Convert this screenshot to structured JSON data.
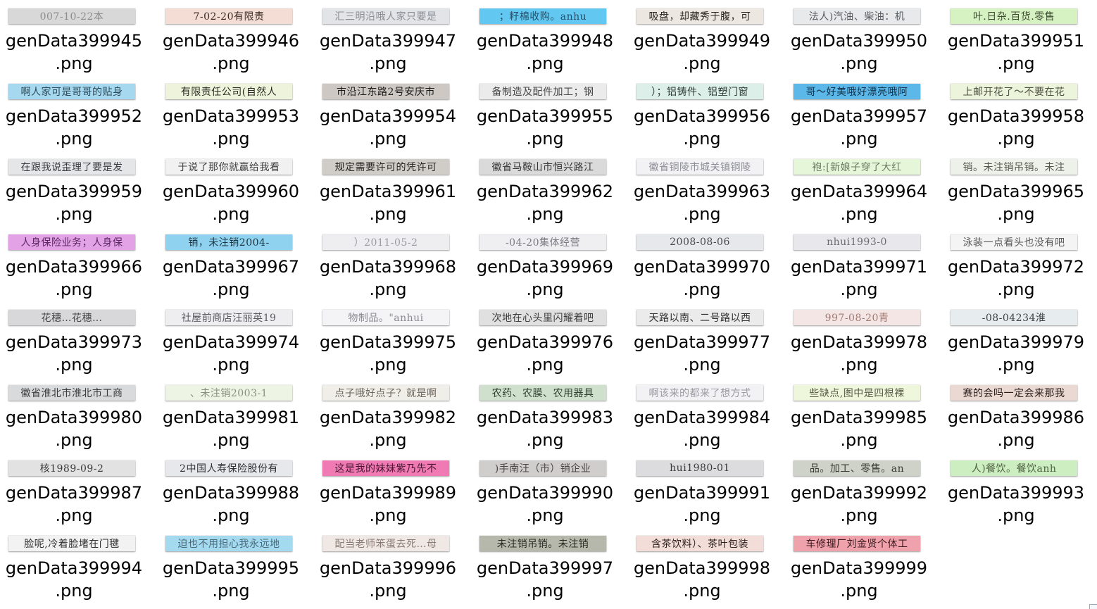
{
  "files": [
    {
      "name_line1": "genData399945",
      "ext": ".png",
      "thumb_text": "007-10-22本",
      "thumb_bg": "#d8d8d8",
      "thumb_fg": "#8c8c8c"
    },
    {
      "name_line1": "genData399946",
      "ext": ".png",
      "thumb_text": "7-02-20有限责",
      "thumb_bg": "#f4ddd4",
      "thumb_fg": "#3a2a22"
    },
    {
      "name_line1": "genData399947",
      "ext": ".png",
      "thumb_text": "汇三明沿哦人家只要是",
      "thumb_bg": "#e2e4e7",
      "thumb_fg": "#8a8f96"
    },
    {
      "name_line1": "genData399948",
      "ext": ".png",
      "thumb_text": "；籽棉收购。anhu",
      "thumb_bg": "#62c8f2",
      "thumb_fg": "#23506a"
    },
    {
      "name_line1": "genData399949",
      "ext": ".png",
      "thumb_text": "吸盘，却藏秀于腹，可",
      "thumb_bg": "#ece7e1",
      "thumb_fg": "#2a2420"
    },
    {
      "name_line1": "genData399950",
      "ext": ".png",
      "thumb_text": "法人)汽油、柴油：机",
      "thumb_bg": "#e8e9eb",
      "thumb_fg": "#555a60"
    },
    {
      "name_line1": "genData399951",
      "ext": ".png",
      "thumb_text": "叶.日杂.百货.零售",
      "thumb_bg": "#d6f2c2",
      "thumb_fg": "#3c4a30"
    },
    {
      "name_line1": "genData399952",
      "ext": ".png",
      "thumb_text": "啊人家可是哥哥的贴身",
      "thumb_bg": "#a6d9ef",
      "thumb_fg": "#2c4a5a"
    },
    {
      "name_line1": "genData399953",
      "ext": ".png",
      "thumb_text": "有限责任公司(自然人",
      "thumb_bg": "#eef4dc",
      "thumb_fg": "#2a2a22"
    },
    {
      "name_line1": "genData399954",
      "ext": ".png",
      "thumb_text": "市沿江东路2号安庆市",
      "thumb_bg": "#cdc8c4",
      "thumb_fg": "#1c1a18"
    },
    {
      "name_line1": "genData399955",
      "ext": ".png",
      "thumb_text": "备制造及配件加工；钢",
      "thumb_bg": "#ebebec",
      "thumb_fg": "#4a4a4a"
    },
    {
      "name_line1": "genData399956",
      "ext": ".png",
      "thumb_text": "）；铝铸件、铝塑门窗",
      "thumb_bg": "#dcefe8",
      "thumb_fg": "#2e3a36"
    },
    {
      "name_line1": "genData399957",
      "ext": ".png",
      "thumb_text": "哥～好美哦好漂亮哦阿",
      "thumb_bg": "#5cb8e8",
      "thumb_fg": "#10324a"
    },
    {
      "name_line1": "genData399958",
      "ext": ".png",
      "thumb_text": "上邮开花了～不要在花",
      "thumb_bg": "#edf4dc",
      "thumb_fg": "#4a5040"
    },
    {
      "name_line1": "genData399959",
      "ext": ".png",
      "thumb_text": "在跟我说歪理了要是发",
      "thumb_bg": "#e5e6e8",
      "thumb_fg": "#3a3c40"
    },
    {
      "name_line1": "genData399960",
      "ext": ".png",
      "thumb_text": "于说了那你就赢给我看",
      "thumb_bg": "#f1f1f1",
      "thumb_fg": "#3e3e3e"
    },
    {
      "name_line1": "genData399961",
      "ext": ".png",
      "thumb_text": "规定需要许可的凭许可",
      "thumb_bg": "#d0ccc8",
      "thumb_fg": "#2a2522"
    },
    {
      "name_line1": "genData399962",
      "ext": ".png",
      "thumb_text": "徽省马鞍山市恒兴路江",
      "thumb_bg": "#dadada",
      "thumb_fg": "#333333"
    },
    {
      "name_line1": "genData399963",
      "ext": ".png",
      "thumb_text": "徽省铜陵市城关镇铜陵",
      "thumb_bg": "#f2f2f4",
      "thumb_fg": "#8c8c96"
    },
    {
      "name_line1": "genData399964",
      "ext": ".png",
      "thumb_text": "袍:[新娘子穿了大红",
      "thumb_bg": "#e6f6d8",
      "thumb_fg": "#6a7a62"
    },
    {
      "name_line1": "genData399965",
      "ext": ".png",
      "thumb_text": "销。未注销吊销。未注",
      "thumb_bg": "#eef0ea",
      "thumb_fg": "#55594e"
    },
    {
      "name_line1": "genData399966",
      "ext": ".png",
      "thumb_text": "人身保险业务；人身保",
      "thumb_bg": "#e4a2e6",
      "thumb_fg": "#5a2860"
    },
    {
      "name_line1": "genData399967",
      "ext": ".png",
      "thumb_text": "销，未注销2004-",
      "thumb_bg": "#8ed2ef",
      "thumb_fg": "#1e3440"
    },
    {
      "name_line1": "genData399968",
      "ext": ".png",
      "thumb_text": "）2011-05-2",
      "thumb_bg": "#eeeef0",
      "thumb_fg": "#9a9aa2"
    },
    {
      "name_line1": "genData399969",
      "ext": ".png",
      "thumb_text": "-04-20集体经营",
      "thumb_bg": "#efeff1",
      "thumb_fg": "#7a7a82"
    },
    {
      "name_line1": "genData399970",
      "ext": ".png",
      "thumb_text": "2008-08-06",
      "thumb_bg": "#e6e8ec",
      "thumb_fg": "#45484e"
    },
    {
      "name_line1": "genData399971",
      "ext": ".png",
      "thumb_text": "nhui1993-0",
      "thumb_bg": "#e8e8ec",
      "thumb_fg": "#6a6a72"
    },
    {
      "name_line1": "genData399972",
      "ext": ".png",
      "thumb_text": "泳装一点看头也没有吧",
      "thumb_bg": "#f4f4f4",
      "thumb_fg": "#5a5a5a"
    },
    {
      "name_line1": "genData399973",
      "ext": ".png",
      "thumb_text": "花穗…花穗…",
      "thumb_bg": "#d8d8da",
      "thumb_fg": "#454548"
    },
    {
      "name_line1": "genData399974",
      "ext": ".png",
      "thumb_text": "社屋前商店汪丽英19",
      "thumb_bg": "#eeeef0",
      "thumb_fg": "#5a5a60"
    },
    {
      "name_line1": "genData399975",
      "ext": ".png",
      "thumb_text": "物制品。\"anhui",
      "thumb_bg": "#f4f4f6",
      "thumb_fg": "#8a8a90"
    },
    {
      "name_line1": "genData399976",
      "ext": ".png",
      "thumb_text": "次地在心头里闪耀着吧",
      "thumb_bg": "#e0e0e0",
      "thumb_fg": "#3c3c3c"
    },
    {
      "name_line1": "genData399977",
      "ext": ".png",
      "thumb_text": "天路以南、二号路以西",
      "thumb_bg": "#ebebeb",
      "thumb_fg": "#303030"
    },
    {
      "name_line1": "genData399978",
      "ext": ".png",
      "thumb_text": "997-08-20青",
      "thumb_bg": "#f4e6e4",
      "thumb_fg": "#a07a72"
    },
    {
      "name_line1": "genData399979",
      "ext": ".png",
      "thumb_text": "-08-04234淮",
      "thumb_bg": "#e7ecee",
      "thumb_fg": "#3c4348"
    },
    {
      "name_line1": "genData399980",
      "ext": ".png",
      "thumb_text": "徽省淮北市淮北市工商",
      "thumb_bg": "#d9dadb",
      "thumb_fg": "#3a3a3c"
    },
    {
      "name_line1": "genData399981",
      "ext": ".png",
      "thumb_text": "、未注销2003-1",
      "thumb_bg": "#eef4e4",
      "thumb_fg": "#8a9080"
    },
    {
      "name_line1": "genData399982",
      "ext": ".png",
      "thumb_text": "点子哦好点子？就是啊",
      "thumb_bg": "#f0eee8",
      "thumb_fg": "#6a645a"
    },
    {
      "name_line1": "genData399983",
      "ext": ".png",
      "thumb_text": "农药、农膜、农用器具",
      "thumb_bg": "#cfe0cc",
      "thumb_fg": "#2e4030"
    },
    {
      "name_line1": "genData399984",
      "ext": ".png",
      "thumb_text": "啊该来的都来了想方式",
      "thumb_bg": "#f2f2f4",
      "thumb_fg": "#9a9aa0"
    },
    {
      "name_line1": "genData399985",
      "ext": ".png",
      "thumb_text": "些缺点,图中是四根裸",
      "thumb_bg": "#eef6dc",
      "thumb_fg": "#5a6048"
    },
    {
      "name_line1": "genData399986",
      "ext": ".png",
      "thumb_text": "赛的会吗一定会来那我",
      "thumb_bg": "#ead8d2",
      "thumb_fg": "#2a1e1a"
    },
    {
      "name_line1": "genData399987",
      "ext": ".png",
      "thumb_text": "核1989-09-2",
      "thumb_bg": "#e2e2e2",
      "thumb_fg": "#3a3a3a"
    },
    {
      "name_line1": "genData399988",
      "ext": ".png",
      "thumb_text": "2中国人寿保险股份有",
      "thumb_bg": "#e6e8ec",
      "thumb_fg": "#303236"
    },
    {
      "name_line1": "genData399989",
      "ext": ".png",
      "thumb_text": "这是我的妹妹紫乃先不",
      "thumb_bg": "#f07ab4",
      "thumb_fg": "#4a1430"
    },
    {
      "name_line1": "genData399990",
      "ext": ".png",
      "thumb_text": ")手南汪（市）销企业",
      "thumb_bg": "#d0cecc",
      "thumb_fg": "#4a4642"
    },
    {
      "name_line1": "genData399991",
      "ext": ".png",
      "thumb_text": "hui1980-01",
      "thumb_bg": "#dcdcde",
      "thumb_fg": "#3a3a3c"
    },
    {
      "name_line1": "genData399992",
      "ext": ".png",
      "thumb_text": "品。加工、零售。an",
      "thumb_bg": "#cfd2c8",
      "thumb_fg": "#3a3c34"
    },
    {
      "name_line1": "genData399993",
      "ext": ".png",
      "thumb_text": "人)餐饮。餐饮anh",
      "thumb_bg": "#cdeec0",
      "thumb_fg": "#4e6042"
    },
    {
      "name_line1": "genData399994",
      "ext": ".png",
      "thumb_text": "脸呢,冷着脸堵在门毽",
      "thumb_bg": "#f2f2f2",
      "thumb_fg": "#2e2e2e"
    },
    {
      "name_line1": "genData399995",
      "ext": ".png",
      "thumb_text": "迫也不用担心我永远地",
      "thumb_bg": "#a4daef",
      "thumb_fg": "#4a6a7a"
    },
    {
      "name_line1": "genData399996",
      "ext": ".png",
      "thumb_text": "配当老师笨蛋去死…母",
      "thumb_bg": "#efe8e4",
      "thumb_fg": "#8a7a74"
    },
    {
      "name_line1": "genData399997",
      "ext": ".png",
      "thumb_text": "未注销吊销。未注销",
      "thumb_bg": "#b6b8ac",
      "thumb_fg": "#2a2c24"
    },
    {
      "name_line1": "genData399998",
      "ext": ".png",
      "thumb_text": "含茶饮料）、茶叶包装",
      "thumb_bg": "#f2ddd8",
      "thumb_fg": "#2e2220"
    },
    {
      "name_line1": "genData399999",
      "ext": ".png",
      "thumb_text": "车修理厂刘金贤个体工",
      "thumb_bg": "#f0a2ac",
      "thumb_fg": "#3a1a1e"
    }
  ]
}
